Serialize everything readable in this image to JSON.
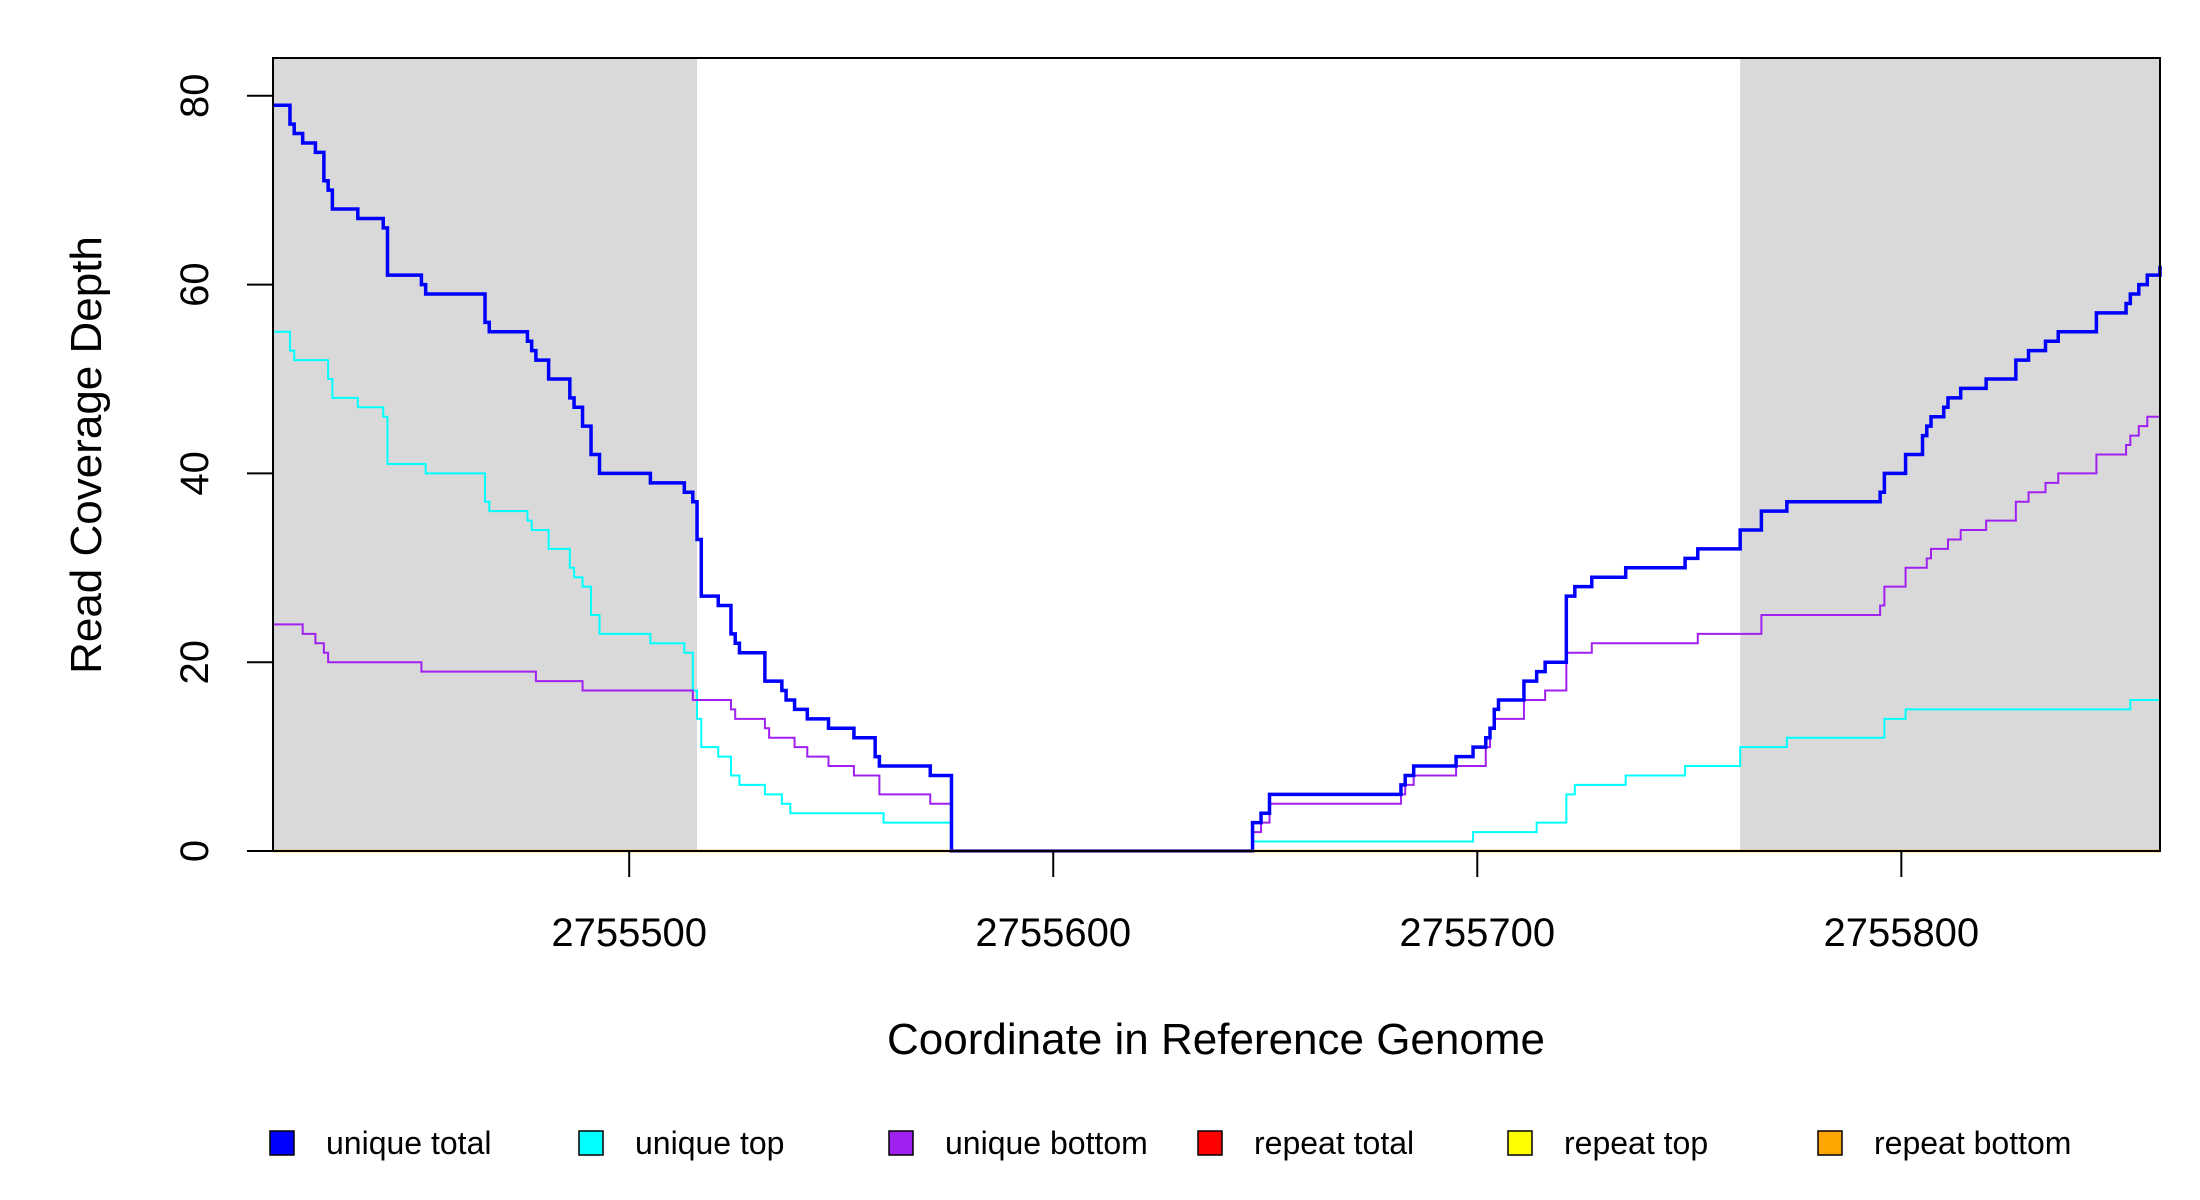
{
  "chart_data": {
    "type": "line",
    "xlabel": "Coordinate in Reference Genome",
    "ylabel": "Read Coverage Depth",
    "xlim": [
      2755416,
      2755861
    ],
    "ylim": [
      0,
      84
    ],
    "x_ticks": [
      2755500,
      2755600,
      2755700,
      2755800
    ],
    "x_tick_labels": [
      "2755500",
      "2755600",
      "2755700",
      "2755800"
    ],
    "y_ticks": [
      0,
      20,
      40,
      60,
      80
    ],
    "y_tick_labels": [
      "0",
      "20",
      "40",
      "60",
      "80"
    ],
    "shaded_regions": [
      [
        2755416,
        2755516
      ],
      [
        2755762,
        2755861
      ]
    ],
    "shade_color": "#d9d9d9",
    "legend_position": "bottom",
    "series": [
      {
        "name": "unique total",
        "color": "#0000ff",
        "points": [
          [
            2755416,
            79
          ],
          [
            2755420,
            77
          ],
          [
            2755421,
            76
          ],
          [
            2755423,
            75
          ],
          [
            2755426,
            74
          ],
          [
            2755428,
            71
          ],
          [
            2755429,
            70
          ],
          [
            2755430,
            68
          ],
          [
            2755436,
            67
          ],
          [
            2755442,
            66
          ],
          [
            2755443,
            61
          ],
          [
            2755451,
            60
          ],
          [
            2755452,
            59
          ],
          [
            2755466,
            56
          ],
          [
            2755467,
            55
          ],
          [
            2755476,
            54
          ],
          [
            2755477,
            53
          ],
          [
            2755478,
            52
          ],
          [
            2755481,
            50
          ],
          [
            2755486,
            48
          ],
          [
            2755487,
            47
          ],
          [
            2755489,
            45
          ],
          [
            2755491,
            42
          ],
          [
            2755493,
            40
          ],
          [
            2755505,
            39
          ],
          [
            2755513,
            38
          ],
          [
            2755515,
            37
          ],
          [
            2755516,
            33
          ],
          [
            2755517,
            27
          ],
          [
            2755521,
            26
          ],
          [
            2755524,
            23
          ],
          [
            2755525,
            22
          ],
          [
            2755526,
            21
          ],
          [
            2755532,
            18
          ],
          [
            2755536,
            17
          ],
          [
            2755537,
            16
          ],
          [
            2755539,
            15
          ],
          [
            2755542,
            14
          ],
          [
            2755547,
            13
          ],
          [
            2755553,
            12
          ],
          [
            2755558,
            10
          ],
          [
            2755559,
            9
          ],
          [
            2755571,
            8
          ],
          [
            2755576,
            0
          ],
          [
            2755647,
            3
          ],
          [
            2755649,
            4
          ],
          [
            2755651,
            6
          ],
          [
            2755682,
            7
          ],
          [
            2755683,
            8
          ],
          [
            2755685,
            9
          ],
          [
            2755695,
            10
          ],
          [
            2755699,
            11
          ],
          [
            2755702,
            12
          ],
          [
            2755703,
            13
          ],
          [
            2755704,
            15
          ],
          [
            2755705,
            16
          ],
          [
            2755711,
            18
          ],
          [
            2755714,
            19
          ],
          [
            2755716,
            20
          ],
          [
            2755721,
            27
          ],
          [
            2755723,
            28
          ],
          [
            2755727,
            29
          ],
          [
            2755735,
            30
          ],
          [
            2755749,
            31
          ],
          [
            2755752,
            32
          ],
          [
            2755762,
            34
          ],
          [
            2755767,
            36
          ],
          [
            2755773,
            37
          ],
          [
            2755795,
            38
          ],
          [
            2755796,
            40
          ],
          [
            2755801,
            42
          ],
          [
            2755805,
            44
          ],
          [
            2755806,
            45
          ],
          [
            2755807,
            46
          ],
          [
            2755810,
            47
          ],
          [
            2755811,
            48
          ],
          [
            2755814,
            49
          ],
          [
            2755820,
            50
          ],
          [
            2755827,
            52
          ],
          [
            2755830,
            53
          ],
          [
            2755834,
            54
          ],
          [
            2755837,
            55
          ],
          [
            2755846,
            57
          ],
          [
            2755853,
            58
          ],
          [
            2755854,
            59
          ],
          [
            2755856,
            60
          ],
          [
            2755858,
            61
          ],
          [
            2755861,
            62
          ]
        ]
      },
      {
        "name": "unique top",
        "color": "#00ffff",
        "points": [
          [
            2755416,
            55
          ],
          [
            2755420,
            53
          ],
          [
            2755421,
            52
          ],
          [
            2755429,
            50
          ],
          [
            2755430,
            48
          ],
          [
            2755436,
            47
          ],
          [
            2755442,
            46
          ],
          [
            2755443,
            41
          ],
          [
            2755452,
            40
          ],
          [
            2755466,
            37
          ],
          [
            2755467,
            36
          ],
          [
            2755476,
            35
          ],
          [
            2755477,
            34
          ],
          [
            2755481,
            32
          ],
          [
            2755486,
            30
          ],
          [
            2755487,
            29
          ],
          [
            2755489,
            28
          ],
          [
            2755491,
            25
          ],
          [
            2755493,
            23
          ],
          [
            2755505,
            22
          ],
          [
            2755513,
            21
          ],
          [
            2755515,
            17
          ],
          [
            2755516,
            14
          ],
          [
            2755517,
            11
          ],
          [
            2755521,
            10
          ],
          [
            2755524,
            8
          ],
          [
            2755526,
            7
          ],
          [
            2755532,
            6
          ],
          [
            2755536,
            5
          ],
          [
            2755538,
            4
          ],
          [
            2755560,
            3
          ],
          [
            2755576,
            0
          ],
          [
            2755647,
            1
          ],
          [
            2755699,
            2
          ],
          [
            2755714,
            3
          ],
          [
            2755721,
            6
          ],
          [
            2755723,
            7
          ],
          [
            2755735,
            8
          ],
          [
            2755749,
            9
          ],
          [
            2755762,
            11
          ],
          [
            2755773,
            12
          ],
          [
            2755796,
            14
          ],
          [
            2755801,
            15
          ],
          [
            2755854,
            16
          ]
        ]
      },
      {
        "name": "unique bottom",
        "color": "#a020f0",
        "points": [
          [
            2755416,
            24
          ],
          [
            2755423,
            23
          ],
          [
            2755426,
            22
          ],
          [
            2755428,
            21
          ],
          [
            2755429,
            20
          ],
          [
            2755451,
            19
          ],
          [
            2755478,
            18
          ],
          [
            2755489,
            17
          ],
          [
            2755515,
            16
          ],
          [
            2755524,
            15
          ],
          [
            2755525,
            14
          ],
          [
            2755532,
            13
          ],
          [
            2755533,
            12
          ],
          [
            2755539,
            11
          ],
          [
            2755542,
            10
          ],
          [
            2755547,
            9
          ],
          [
            2755553,
            8
          ],
          [
            2755559,
            6
          ],
          [
            2755571,
            5
          ],
          [
            2755576,
            0
          ],
          [
            2755647,
            2
          ],
          [
            2755649,
            3
          ],
          [
            2755651,
            5
          ],
          [
            2755682,
            6
          ],
          [
            2755683,
            7
          ],
          [
            2755685,
            8
          ],
          [
            2755695,
            9
          ],
          [
            2755702,
            11
          ],
          [
            2755703,
            13
          ],
          [
            2755704,
            14
          ],
          [
            2755711,
            16
          ],
          [
            2755716,
            17
          ],
          [
            2755721,
            21
          ],
          [
            2755727,
            22
          ],
          [
            2755752,
            23
          ],
          [
            2755767,
            25
          ],
          [
            2755795,
            26
          ],
          [
            2755796,
            28
          ],
          [
            2755801,
            30
          ],
          [
            2755806,
            31
          ],
          [
            2755807,
            32
          ],
          [
            2755811,
            33
          ],
          [
            2755814,
            34
          ],
          [
            2755820,
            35
          ],
          [
            2755827,
            37
          ],
          [
            2755830,
            38
          ],
          [
            2755834,
            39
          ],
          [
            2755837,
            40
          ],
          [
            2755846,
            42
          ],
          [
            2755853,
            43
          ],
          [
            2755854,
            44
          ],
          [
            2755856,
            45
          ],
          [
            2755858,
            46
          ]
        ]
      },
      {
        "name": "repeat total",
        "color": "#ff0000",
        "points": [
          [
            2755416,
            0
          ],
          [
            2755861,
            0
          ]
        ]
      },
      {
        "name": "repeat top",
        "color": "#ffff00",
        "points": [
          [
            2755416,
            0
          ],
          [
            2755861,
            0
          ]
        ]
      },
      {
        "name": "repeat bottom",
        "color": "#ffa500",
        "points": [
          [
            2755416,
            0
          ],
          [
            2755861,
            0
          ]
        ]
      }
    ]
  }
}
